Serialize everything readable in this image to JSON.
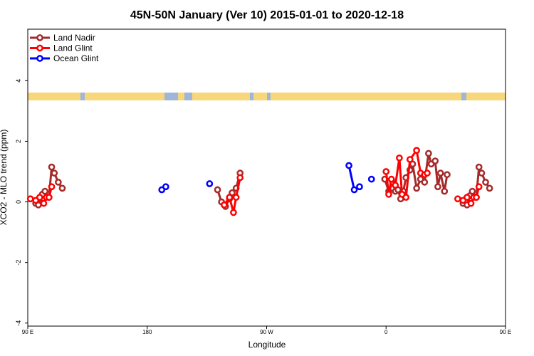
{
  "chart_data": {
    "type": "line",
    "title": "45N-50N January (Ver 10)   2015-01-01 to 2020-12-18",
    "xlabel": "Longitude",
    "ylabel": "XCO2 - MLO trend (ppm)",
    "xlim": [
      90,
      450
    ],
    "ylim": [
      -4.1,
      5.7
    ],
    "xticks": [
      {
        "value": 90,
        "label": "90 E"
      },
      {
        "value": 180,
        "label": "180"
      },
      {
        "value": 270,
        "label": "90 W"
      },
      {
        "value": 360,
        "label": "0"
      },
      {
        "value": 450,
        "label": "90 E"
      },
      {
        "value": 540,
        "label": "180"
      }
    ],
    "yticks": [
      {
        "value": -4,
        "label": "-4"
      },
      {
        "value": -2,
        "label": "-2"
      },
      {
        "value": 0,
        "label": "0"
      },
      {
        "value": 2,
        "label": "2"
      },
      {
        "value": 4,
        "label": "4"
      }
    ],
    "grid": false,
    "legend_position": "top-left",
    "series": [
      {
        "name": "Land Nadir",
        "color": "#a52a2a",
        "segments": [
          [
            [
              96,
              -0.05
            ],
            [
              98,
              -0.1
            ],
            [
              101,
              0.25
            ],
            [
              103,
              0.35
            ],
            [
              106,
              0.15
            ],
            [
              108,
              1.15
            ],
            [
              110,
              0.95
            ],
            [
              113,
              0.65
            ],
            [
              116,
              0.45
            ]
          ],
          [
            [
              233,
              0.4
            ],
            [
              236,
              0.0
            ],
            [
              239,
              -0.15
            ],
            [
              242,
              0.1
            ],
            [
              244,
              0.3
            ],
            [
              247,
              0.45
            ],
            [
              250,
              0.95
            ]
          ],
          [
            [
              359,
              0.75
            ],
            [
              362,
              0.35
            ],
            [
              365,
              0.65
            ],
            [
              367,
              0.35
            ],
            [
              369,
              0.4
            ],
            [
              371,
              0.1
            ],
            [
              373,
              0.35
            ],
            [
              375,
              0.8
            ],
            [
              378,
              1.05
            ],
            [
              380,
              1.25
            ],
            [
              383,
              0.45
            ],
            [
              386,
              0.75
            ],
            [
              389,
              0.65
            ],
            [
              392,
              1.6
            ],
            [
              394,
              1.25
            ],
            [
              397,
              1.35
            ],
            [
              399,
              0.5
            ],
            [
              401,
              0.95
            ],
            [
              404,
              0.35
            ],
            [
              406,
              0.9
            ]
          ],
          [
            [
              418,
              -0.05
            ],
            [
              421,
              -0.1
            ],
            [
              423,
              0.2
            ],
            [
              425,
              0.35
            ],
            [
              428,
              0.15
            ],
            [
              430,
              1.15
            ],
            [
              432,
              0.95
            ],
            [
              435,
              0.65
            ],
            [
              438,
              0.45
            ]
          ]
        ]
      },
      {
        "name": "Land Glint",
        "color": "#ff0000",
        "segments": [
          [
            [
              92,
              0.1
            ],
            [
              96,
              0.05
            ],
            [
              99,
              0.15
            ],
            [
              102,
              -0.05
            ],
            [
              104,
              0.15
            ],
            [
              106,
              0.15
            ],
            [
              108,
              0.5
            ]
          ],
          [
            [
              238,
              -0.1
            ],
            [
              242,
              0.15
            ],
            [
              245,
              -0.35
            ],
            [
              247,
              0.15
            ],
            [
              250,
              0.8
            ]
          ],
          [
            [
              360,
              1.0
            ],
            [
              362,
              0.25
            ],
            [
              364,
              0.75
            ],
            [
              367,
              0.55
            ],
            [
              370,
              1.45
            ],
            [
              372,
              0.25
            ],
            [
              375,
              0.15
            ],
            [
              378,
              1.4
            ],
            [
              383,
              1.7
            ],
            [
              386,
              0.95
            ],
            [
              389,
              0.9
            ],
            [
              391,
              0.95
            ]
          ],
          [
            [
              414,
              0.1
            ],
            [
              418,
              0.05
            ],
            [
              421,
              0.15
            ],
            [
              424,
              -0.05
            ],
            [
              426,
              0.15
            ],
            [
              428,
              0.15
            ],
            [
              430,
              0.5
            ]
          ]
        ]
      },
      {
        "name": "Ocean Glint",
        "color": "#0000ff",
        "segments": [
          [
            [
              191,
              0.4
            ],
            [
              194,
              0.5
            ]
          ],
          [
            [
              227,
              0.6
            ]
          ],
          [
            [
              332,
              1.2
            ],
            [
              336,
              0.4
            ],
            [
              340,
              0.5
            ]
          ],
          [
            [
              349,
              0.75
            ]
          ]
        ]
      }
    ]
  },
  "map_strip": {
    "ocean_color": "#9fb6d8",
    "land_color": "#f7d77a"
  }
}
